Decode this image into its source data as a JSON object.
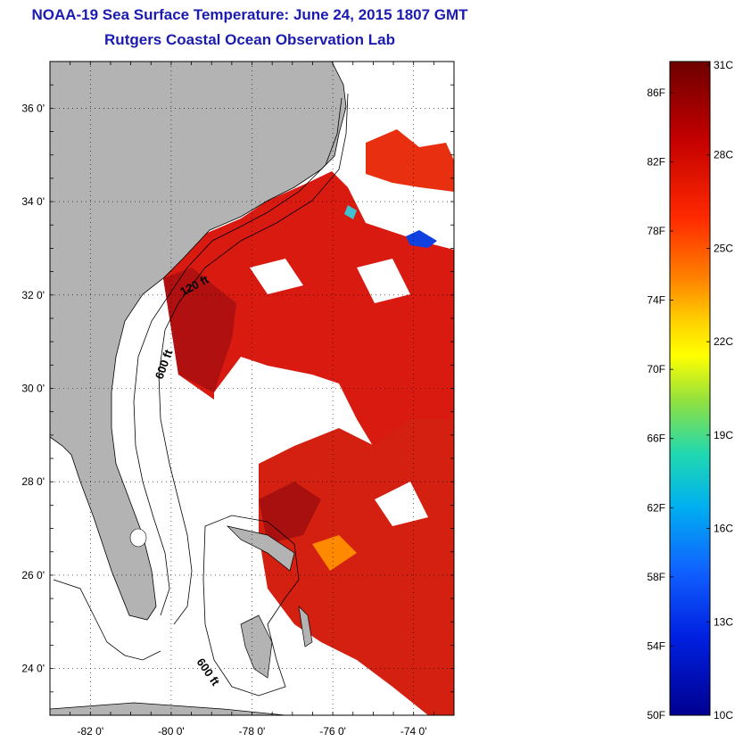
{
  "title": {
    "line1": "NOAA-19 Sea Surface Temperature:  June 24, 2015 1807 GMT",
    "line2": "Rutgers Coastal Ocean Observation Lab"
  },
  "map": {
    "lon_range": [
      -83.0,
      -73.0
    ],
    "lat_range": [
      23.0,
      37.0
    ],
    "lat_labels": [
      "36 0'",
      "34 0'",
      "32 0'",
      "30 0'",
      "28 0'",
      "26 0'",
      "24 0'"
    ],
    "lat_values": [
      36,
      34,
      32,
      30,
      28,
      26,
      24
    ],
    "lon_labels": [
      "-82 0'",
      "-80 0'",
      "-78 0'",
      "-76 0'",
      "-74 0'"
    ],
    "lon_values": [
      -82,
      -80,
      -78,
      -76,
      -74
    ],
    "contour_labels": [
      "120 ft",
      "600 ft",
      "600 ft"
    ],
    "land_color": "#b3b3b3",
    "cloud_color": "#ffffff"
  },
  "colorbar": {
    "fahrenheit_labels": [
      "86F",
      "82F",
      "78F",
      "74F",
      "70F",
      "66F",
      "62F",
      "58F",
      "54F",
      "50F"
    ],
    "celsius_labels": [
      "31C",
      "28C",
      "25C",
      "22C",
      "19C",
      "16C",
      "13C",
      "10C"
    ],
    "colors": [
      "#7a0000",
      "#c00000",
      "#ff2000",
      "#ff7a00",
      "#ffd000",
      "#ffff00",
      "#80e040",
      "#00d0c0",
      "#00a0ff",
      "#2040ff",
      "#0000a0"
    ]
  }
}
